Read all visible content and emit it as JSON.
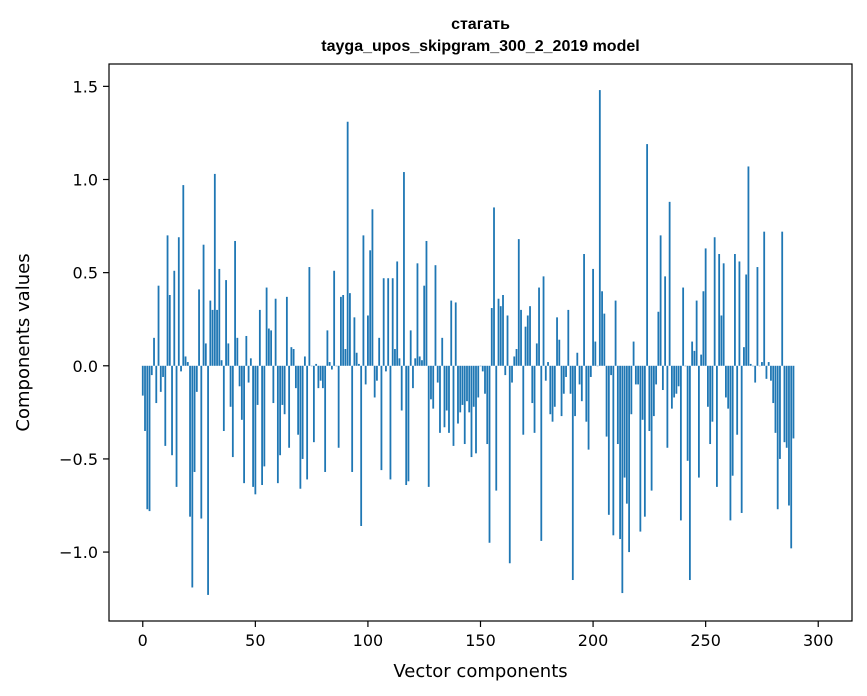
{
  "chart_data": {
    "type": "bar",
    "title": [
      "стагать",
      "tayga_upos_skipgram_300_2_2019 model"
    ],
    "xlabel": "Vector components",
    "ylabel": "Components values",
    "xlim": [
      -15,
      315
    ],
    "ylim": [
      -1.37,
      1.62
    ],
    "xticks": [
      0,
      50,
      100,
      150,
      200,
      250,
      300
    ],
    "yticks": [
      -1.0,
      -0.5,
      0.0,
      0.5,
      1.0,
      1.5
    ],
    "ytick_labels": [
      "−1.0",
      "−0.5",
      "0.0",
      "0.5",
      "1.0",
      "1.5"
    ],
    "bar_color": "#1f77b4",
    "grid": false,
    "values": [
      -0.16,
      -0.35,
      -0.77,
      -0.78,
      -0.05,
      0.15,
      -0.2,
      0.43,
      -0.14,
      -0.06,
      -0.43,
      0.7,
      0.38,
      -0.48,
      0.51,
      -0.65,
      0.69,
      -0.03,
      0.97,
      0.05,
      0.02,
      -0.81,
      -1.19,
      -0.57,
      -0.14,
      0.41,
      -0.82,
      0.65,
      0.12,
      -1.23,
      0.35,
      0.3,
      1.03,
      0.3,
      0.52,
      0.03,
      -0.35,
      0.46,
      0.12,
      -0.22,
      -0.49,
      0.67,
      0.15,
      -0.11,
      -0.29,
      -0.63,
      0.16,
      -0.09,
      0.04,
      -0.65,
      -0.69,
      -0.21,
      0.3,
      -0.64,
      -0.54,
      0.42,
      0.2,
      0.19,
      -0.2,
      0.36,
      -0.63,
      -0.48,
      -0.21,
      -0.26,
      0.37,
      -0.44,
      0.1,
      0.09,
      -0.12,
      -0.37,
      -0.66,
      -0.5,
      0.05,
      -0.61,
      0.53,
      0.0,
      -0.41,
      0.01,
      -0.12,
      -0.08,
      -0.12,
      -0.57,
      0.19,
      0.02,
      -0.02,
      0.51,
      0.0,
      -0.44,
      0.37,
      0.38,
      0.09,
      1.31,
      0.39,
      -0.57,
      0.26,
      0.07,
      0.01,
      -0.86,
      0.7,
      -0.1,
      0.27,
      0.62,
      0.84,
      -0.17,
      -0.08,
      0.15,
      -0.56,
      0.47,
      -0.03,
      0.47,
      -0.61,
      0.47,
      0.09,
      0.56,
      0.04,
      -0.24,
      1.04,
      -0.64,
      -0.62,
      0.19,
      -0.12,
      0.04,
      0.55,
      0.05,
      0.03,
      0.43,
      0.67,
      -0.65,
      -0.18,
      -0.23,
      0.54,
      -0.09,
      -0.36,
      0.15,
      -0.33,
      -0.24,
      -0.36,
      0.35,
      -0.43,
      0.34,
      -0.31,
      -0.25,
      -0.21,
      -0.42,
      -0.19,
      -0.25,
      -0.49,
      -0.22,
      -0.47,
      -0.17,
      0.0,
      -0.03,
      -0.15,
      -0.42,
      -0.95,
      0.31,
      0.85,
      -0.67,
      0.36,
      0.32,
      0.38,
      -0.05,
      0.27,
      -1.06,
      -0.09,
      0.05,
      0.09,
      0.68,
      0.3,
      -0.37,
      0.21,
      0.27,
      0.32,
      -0.2,
      -0.36,
      0.12,
      0.42,
      -0.94,
      0.48,
      -0.08,
      0.02,
      -0.26,
      -0.3,
      -0.22,
      0.26,
      0.14,
      -0.27,
      -0.15,
      -0.06,
      0.3,
      -0.15,
      -1.15,
      -0.27,
      0.07,
      -0.1,
      -0.19,
      0.6,
      -0.3,
      -0.45,
      -0.06,
      0.52,
      0.13,
      0.0,
      1.48,
      0.4,
      0.28,
      -0.38,
      -0.8,
      -0.05,
      -0.91,
      0.35,
      -0.42,
      -0.93,
      -1.22,
      -0.6,
      -0.74,
      -1.0,
      -0.26,
      0.13,
      -0.1,
      -0.1,
      -0.89,
      -0.29,
      -0.81,
      1.19,
      -0.35,
      -0.67,
      -0.27,
      -0.1,
      0.29,
      0.7,
      -0.13,
      0.48,
      -0.44,
      0.88,
      -0.23,
      -0.17,
      -0.15,
      -0.11,
      -0.83,
      0.42,
      0.0,
      -0.51,
      -1.15,
      0.13,
      0.08,
      0.35,
      -0.6,
      0.06,
      0.4,
      0.63,
      -0.22,
      -0.42,
      -0.3,
      0.69,
      -0.65,
      0.6,
      0.27,
      0.55,
      -0.17,
      -0.23,
      -0.83,
      -0.59,
      0.6,
      -0.37,
      0.56,
      -0.79,
      0.1,
      0.49,
      1.07,
      0.01,
      0.0,
      -0.09,
      0.53,
      0.0,
      0.02,
      0.72,
      -0.07,
      0.02,
      -0.08,
      -0.2,
      -0.36,
      -0.77,
      -0.5,
      0.72,
      -0.41,
      -0.44,
      -0.75,
      -0.98,
      -0.39
    ]
  }
}
